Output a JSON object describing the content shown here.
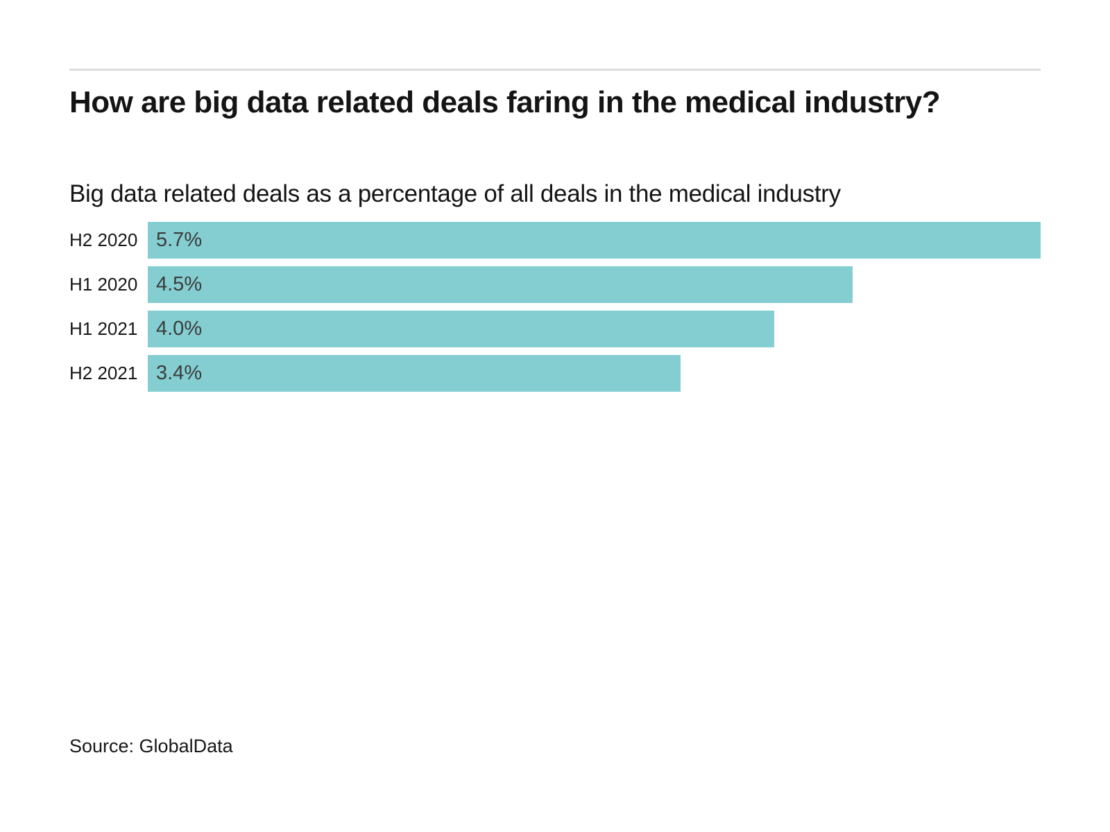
{
  "chart_data": {
    "type": "bar",
    "orientation": "horizontal",
    "title": "How are big data related deals faring in the medical industry?",
    "subtitle": "Big data related deals as a percentage of all deals in the medical industry",
    "categories": [
      "H2 2020",
      "H1 2020",
      "H1 2021",
      "H2 2021"
    ],
    "values": [
      5.7,
      4.5,
      4.0,
      3.4
    ],
    "value_labels": [
      "5.7%",
      "4.5%",
      "4.0%",
      "3.4%"
    ],
    "xlim": [
      0,
      5.7
    ],
    "grid": "off",
    "legend": "none",
    "bar_color": "#84ced1",
    "value_label_color": "#3b3b3b",
    "source": "Source: GlobalData"
  }
}
